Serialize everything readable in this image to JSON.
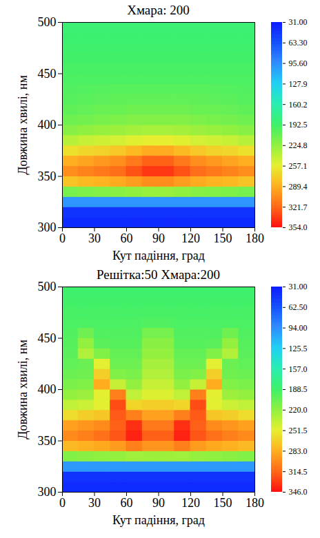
{
  "chart_data": [
    {
      "type": "heatmap",
      "title": "Хмара: 200",
      "x_label": "Кут падіння, град",
      "y_label": "Довжина хвилі, нм",
      "xlim": [
        0,
        180
      ],
      "xticks": [
        0,
        30,
        60,
        90,
        120,
        150,
        180
      ],
      "ylim": [
        300,
        500
      ],
      "yticks": [
        300,
        350,
        400,
        450,
        500
      ],
      "x_bins": [
        0,
        15,
        30,
        45,
        60,
        75,
        90,
        105,
        120,
        135,
        150,
        165,
        180
      ],
      "y_bins": [
        300,
        310,
        320,
        330,
        340,
        350,
        360,
        370,
        380,
        390,
        400,
        410,
        420,
        430,
        440,
        450,
        460,
        470,
        480,
        490,
        500
      ],
      "cells": [
        [
          40,
          40,
          40,
          40,
          40,
          40,
          40,
          40,
          40,
          40,
          40,
          40
        ],
        [
          45,
          45,
          45,
          45,
          45,
          45,
          45,
          45,
          45,
          45,
          45,
          45
        ],
        [
          100,
          100,
          100,
          100,
          100,
          100,
          100,
          100,
          100,
          100,
          100,
          100
        ],
        [
          215,
          218,
          220,
          222,
          225,
          228,
          228,
          225,
          222,
          220,
          218,
          215
        ],
        [
          280,
          285,
          288,
          292,
          298,
          305,
          305,
          298,
          292,
          288,
          285,
          280
        ],
        [
          305,
          310,
          315,
          320,
          330,
          340,
          340,
          330,
          320,
          315,
          310,
          305
        ],
        [
          290,
          295,
          300,
          305,
          315,
          325,
          325,
          315,
          305,
          300,
          295,
          290
        ],
        [
          265,
          270,
          272,
          278,
          285,
          292,
          292,
          285,
          278,
          272,
          270,
          265
        ],
        [
          240,
          245,
          248,
          250,
          255,
          258,
          258,
          255,
          250,
          248,
          245,
          240
        ],
        [
          222,
          225,
          228,
          230,
          232,
          234,
          234,
          232,
          230,
          228,
          225,
          222
        ],
        [
          212,
          214,
          216,
          218,
          220,
          220,
          220,
          220,
          218,
          216,
          214,
          212
        ],
        [
          206,
          208,
          210,
          210,
          212,
          212,
          212,
          212,
          210,
          210,
          208,
          206
        ],
        [
          202,
          204,
          205,
          206,
          207,
          207,
          207,
          207,
          206,
          205,
          204,
          202
        ],
        [
          200,
          201,
          202,
          203,
          203,
          203,
          203,
          203,
          203,
          202,
          201,
          200
        ],
        [
          198,
          198,
          198,
          198,
          198,
          198,
          198,
          198,
          198,
          198,
          198,
          198
        ],
        [
          196,
          196,
          196,
          196,
          196,
          196,
          196,
          196,
          196,
          196,
          196,
          196
        ],
        [
          194,
          194,
          194,
          194,
          194,
          194,
          194,
          194,
          194,
          194,
          194,
          194
        ],
        [
          192,
          192,
          192,
          192,
          192,
          192,
          192,
          192,
          192,
          192,
          192,
          192
        ],
        [
          190,
          190,
          190,
          190,
          190,
          190,
          190,
          190,
          190,
          190,
          190,
          190
        ],
        [
          188,
          188,
          188,
          188,
          188,
          188,
          188,
          188,
          188,
          188,
          188,
          188
        ]
      ],
      "colorbar_lim": [
        31,
        354
      ],
      "colorbar_ticks": [
        {
          "value": 31,
          "label": "31.00"
        },
        {
          "value": 63.3,
          "label": "63.30"
        },
        {
          "value": 95.6,
          "label": "95.60"
        },
        127.9,
        160.2,
        192.5,
        224.8,
        257.1,
        289.4,
        321.7,
        {
          "value": 354,
          "label": "354.0"
        }
      ]
    },
    {
      "type": "heatmap",
      "title": "Решітка:50 Хмара:200",
      "x_label": "Кут падіння, град",
      "y_label": "Довжина хвилі, нм",
      "xlim": [
        0,
        180
      ],
      "xticks": [
        0,
        30,
        60,
        90,
        120,
        150,
        180
      ],
      "ylim": [
        300,
        500
      ],
      "yticks": [
        300,
        350,
        400,
        450,
        500
      ],
      "x_bins": [
        0,
        15,
        30,
        45,
        60,
        75,
        90,
        105,
        120,
        135,
        150,
        165,
        180
      ],
      "y_bins": [
        300,
        310,
        320,
        330,
        340,
        350,
        360,
        370,
        380,
        390,
        400,
        410,
        420,
        430,
        440,
        450,
        460,
        470,
        480,
        490,
        500
      ],
      "cells": [
        [
          40,
          40,
          40,
          40,
          40,
          40,
          40,
          40,
          40,
          40,
          40,
          40
        ],
        [
          45,
          45,
          45,
          45,
          45,
          45,
          45,
          45,
          45,
          45,
          45,
          45
        ],
        [
          100,
          100,
          100,
          100,
          100,
          100,
          100,
          100,
          100,
          100,
          100,
          100
        ],
        [
          215,
          218,
          220,
          222,
          226,
          225,
          225,
          226,
          222,
          220,
          218,
          215
        ],
        [
          278,
          282,
          286,
          292,
          305,
          295,
          295,
          305,
          292,
          286,
          282,
          278
        ],
        [
          300,
          305,
          312,
          322,
          340,
          318,
          318,
          340,
          322,
          312,
          305,
          300
        ],
        [
          290,
          295,
          300,
          318,
          335,
          308,
          308,
          335,
          318,
          300,
          295,
          290
        ],
        [
          262,
          268,
          272,
          320,
          305,
          290,
          290,
          305,
          320,
          272,
          268,
          262
        ],
        [
          238,
          242,
          250,
          325,
          265,
          268,
          268,
          265,
          325,
          250,
          242,
          238
        ],
        [
          222,
          225,
          250,
          305,
          238,
          248,
          248,
          238,
          305,
          250,
          225,
          222
        ],
        [
          212,
          215,
          285,
          240,
          222,
          240,
          240,
          222,
          240,
          285,
          215,
          212
        ],
        [
          206,
          208,
          268,
          215,
          212,
          232,
          232,
          212,
          215,
          268,
          208,
          206
        ],
        [
          202,
          206,
          250,
          207,
          207,
          228,
          228,
          207,
          207,
          250,
          206,
          202
        ],
        [
          200,
          232,
          215,
          203,
          203,
          222,
          222,
          203,
          203,
          215,
          232,
          200
        ],
        [
          198,
          222,
          200,
          198,
          198,
          218,
          218,
          198,
          198,
          200,
          222,
          198
        ],
        [
          196,
          208,
          196,
          196,
          196,
          210,
          210,
          196,
          196,
          196,
          208,
          196
        ],
        [
          194,
          194,
          194,
          194,
          194,
          196,
          196,
          194,
          194,
          194,
          194,
          194
        ],
        [
          192,
          192,
          192,
          192,
          192,
          192,
          192,
          192,
          192,
          192,
          192,
          192
        ],
        [
          190,
          190,
          190,
          190,
          190,
          190,
          190,
          190,
          190,
          190,
          190,
          190
        ],
        [
          188,
          188,
          188,
          188,
          188,
          188,
          188,
          188,
          188,
          188,
          188,
          188
        ]
      ],
      "colorbar_lim": [
        31,
        346
      ],
      "colorbar_ticks": [
        {
          "value": 31,
          "label": "31.00"
        },
        {
          "value": 62.5,
          "label": "62.50"
        },
        {
          "value": 94,
          "label": "94.00"
        },
        125.5,
        {
          "value": 157,
          "label": "157.0"
        },
        188.5,
        {
          "value": 220,
          "label": "220.0"
        },
        251.5,
        {
          "value": 283,
          "label": "283.0"
        },
        314.5,
        {
          "value": 346,
          "label": "346.0"
        }
      ]
    }
  ]
}
